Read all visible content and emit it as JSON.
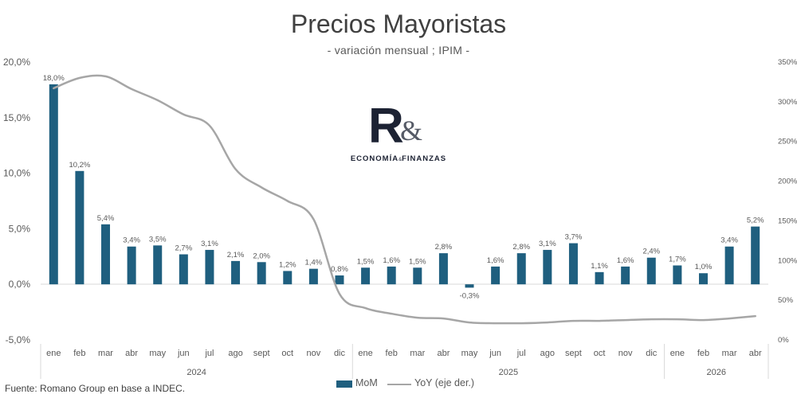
{
  "header": {
    "title": "Precios Mayoristas",
    "subtitle": "- variación mensual ; IPIM -"
  },
  "logo": {
    "letter": "R",
    "ampersand": "&",
    "text_a": "ECONOMÍA",
    "text_small": "&",
    "text_b": "FINANZAS"
  },
  "footer": {
    "source": "Fuente: Romano Group en base a INDEC."
  },
  "legend": {
    "mom_label": "MoM",
    "yoy_label": "YoY (eje der.)"
  },
  "colors": {
    "bar": "#1f5f7f",
    "line": "#a6a6a6",
    "grid": "#d9d9d9",
    "axis_text": "#595959"
  },
  "chart_data": {
    "type": "bar",
    "title": "Precios Mayoristas",
    "subtitle": "- variación mensual ; IPIM -",
    "categories": [
      "ene",
      "feb",
      "mar",
      "abr",
      "may",
      "jun",
      "jul",
      "ago",
      "sept",
      "oct",
      "nov",
      "dic",
      "ene",
      "feb",
      "mar",
      "abr",
      "may",
      "jun",
      "jul",
      "ago",
      "sept",
      "oct",
      "nov",
      "dic",
      "ene",
      "feb",
      "mar",
      "abr"
    ],
    "year_groups": [
      {
        "label": "2024",
        "count": 12
      },
      {
        "label": "2025",
        "count": 12
      },
      {
        "label": "2026",
        "count": 4
      }
    ],
    "series": [
      {
        "name": "MoM",
        "type": "bar",
        "axis": "left",
        "values": [
          18.0,
          10.2,
          5.4,
          3.4,
          3.5,
          2.7,
          3.1,
          2.1,
          2.0,
          1.2,
          1.4,
          0.8,
          1.5,
          1.6,
          1.5,
          2.8,
          -0.3,
          1.6,
          2.8,
          3.1,
          3.7,
          1.1,
          1.6,
          2.4,
          1.7,
          1.0,
          3.4,
          5.2
        ],
        "labels": [
          "18,0%",
          "10,2%",
          "5,4%",
          "3,4%",
          "3,5%",
          "2,7%",
          "3,1%",
          "2,1%",
          "2,0%",
          "1,2%",
          "1,4%",
          "0,8%",
          "1,5%",
          "1,6%",
          "1,5%",
          "2,8%",
          "-0,3%",
          "1,6%",
          "2,8%",
          "3,1%",
          "3,7%",
          "1,1%",
          "1,6%",
          "2,4%",
          "1,7%",
          "1,0%",
          "3,4%",
          "5,2%"
        ]
      },
      {
        "name": "YoY (eje der.)",
        "type": "line",
        "axis": "right",
        "values": [
          317,
          330,
          332,
          316,
          302,
          284,
          270,
          215,
          192,
          175,
          152,
          58,
          40,
          33,
          28,
          27,
          22,
          21,
          21,
          22,
          24,
          24,
          25,
          26,
          26,
          25,
          27,
          30
        ]
      }
    ],
    "y_left": {
      "min": -5,
      "max": 20,
      "step": 5,
      "tick_labels": [
        "-5,0%",
        "0,0%",
        "5,0%",
        "10,0%",
        "15,0%",
        "20,0%"
      ]
    },
    "y_right": {
      "min": 0,
      "max": 350,
      "step": 50,
      "tick_labels": [
        "0%",
        "50%",
        "100%",
        "150%",
        "200%",
        "250%",
        "300%",
        "350%"
      ]
    },
    "grid": false,
    "legend_position": "bottom"
  }
}
